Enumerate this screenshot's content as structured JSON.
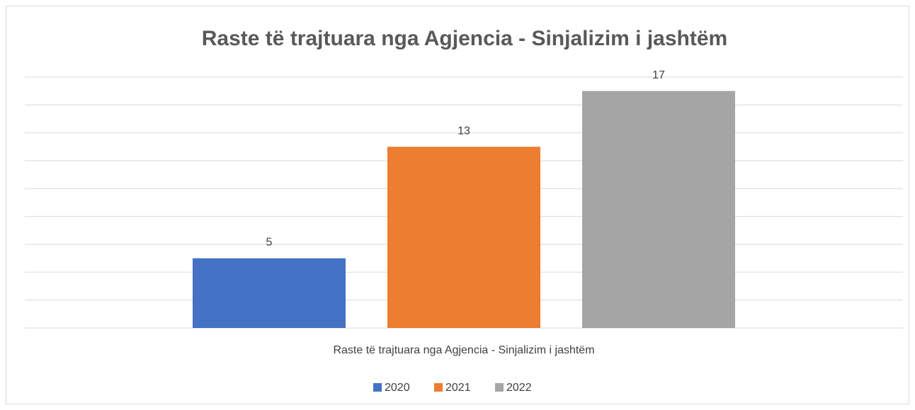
{
  "chart_data": {
    "type": "bar",
    "title": "Raste të trajtuara nga Agjencia - Sinjalizim i jashtëm",
    "categories": [
      "Raste të trajtuara nga Agjencia - Sinjalizim i jashtëm"
    ],
    "series": [
      {
        "name": "2020",
        "color": "#4472c4",
        "values": [
          5
        ]
      },
      {
        "name": "2021",
        "color": "#ed7d31",
        "values": [
          13
        ]
      },
      {
        "name": "2022",
        "color": "#a5a5a5",
        "values": [
          17
        ]
      }
    ],
    "ylim": [
      0,
      18
    ],
    "yticks": [
      0,
      2,
      4,
      6,
      8,
      10,
      12,
      14,
      16,
      18
    ],
    "grid": true,
    "legend": "bottom"
  }
}
